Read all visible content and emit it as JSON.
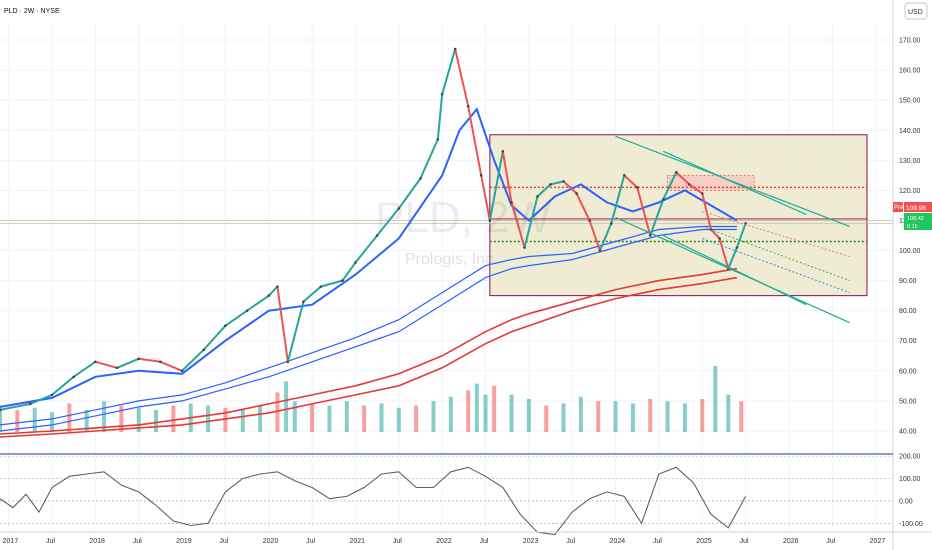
{
  "header": {
    "title": "PLD · 2W · NYSE",
    "currency_button": "USD"
  },
  "watermark": {
    "symbol": "PLD, 2W",
    "name": "Prologis, Inc."
  },
  "price_tags": {
    "last": "109.98",
    "pre_label": "Pre",
    "pre": "109.98",
    "extra_1": "108.42",
    "extra_2": "0.15"
  },
  "colors": {
    "up": "#26a69a",
    "down": "#ef5350",
    "ema_blue": "#2962ff",
    "ema_red": "#e53935",
    "channel": "#22ab94",
    "box_border": "#880e4f",
    "box_fill": "#e9e6c4"
  },
  "chart_data": [
    {
      "type": "line",
      "title": "",
      "y_axis_ticks": [
        "170.00",
        "160.00",
        "150.00",
        "140.00",
        "130.00",
        "120.00",
        "110.00",
        "100.00",
        "90.00",
        "80.00",
        "70.00",
        "60.00",
        "50.00",
        "40.00"
      ],
      "x_axis_ticks": [
        "2017",
        "Jul",
        "2018",
        "Jul",
        "2019",
        "Jul",
        "2020",
        "Jul",
        "2021",
        "Jul",
        "2022",
        "Jul",
        "2023",
        "Jul",
        "2024",
        "Jul",
        "2025",
        "Jul",
        "2026",
        "Jul",
        "2027"
      ],
      "ylim": [
        33,
        176
      ],
      "series": [
        {
          "x": [
            2016.9,
            2017.25,
            2017.5,
            2017.75,
            2018.0,
            2018.25,
            2018.5,
            2018.75,
            2019.0,
            2019.25,
            2019.5,
            2019.75,
            2020.0,
            2020.1,
            2020.22,
            2020.4,
            2020.6,
            2020.85,
            2021.0,
            2021.25,
            2021.5,
            2021.75,
            2021.95,
            2022.0,
            2022.15,
            2022.3,
            2022.45,
            2022.55,
            2022.7,
            2022.8,
            2022.95,
            2023.1,
            2023.25,
            2023.4,
            2023.55,
            2023.7,
            2023.82,
            2023.95,
            2024.1,
            2024.25,
            2024.4,
            2024.55,
            2024.7,
            2024.85,
            2025.0,
            2025.1,
            2025.2,
            2025.3,
            2025.4,
            2025.5
          ],
          "y": [
            47,
            49,
            52,
            58,
            63,
            61,
            64,
            63,
            60,
            67,
            75,
            80,
            85,
            88,
            63,
            83,
            88,
            90,
            96,
            105,
            114,
            124,
            137,
            152,
            167,
            148,
            125,
            110,
            133,
            116,
            101,
            118,
            122,
            123,
            119,
            110,
            100,
            109,
            125,
            121,
            105,
            117,
            126,
            122,
            119,
            107,
            104,
            94,
            101,
            109
          ]
        },
        {
          "x": [
            2016.9,
            2017.5,
            2018.0,
            2018.5,
            2019.0,
            2019.5,
            2020.0,
            2020.5,
            2021.0,
            2021.5,
            2022.0,
            2022.2,
            2022.4,
            2022.6,
            2022.8,
            2023.0,
            2023.3,
            2023.6,
            2023.9,
            2024.2,
            2024.5,
            2024.8,
            2025.1,
            2025.4
          ],
          "y": [
            48,
            51,
            58,
            60,
            59,
            70,
            80,
            82,
            92,
            104,
            125,
            140,
            147,
            130,
            115,
            110,
            118,
            122,
            116,
            113,
            116,
            120,
            115,
            110
          ]
        },
        {
          "x": [
            2016.9,
            2017.5,
            2018.0,
            2018.5,
            2019.0,
            2019.5,
            2020.0,
            2020.5,
            2021.0,
            2021.5,
            2022.0,
            2022.5,
            2022.8,
            2023.0,
            2023.5,
            2024.0,
            2024.5,
            2025.0,
            2025.4
          ],
          "y": [
            42,
            44,
            47,
            50,
            52,
            56,
            61,
            66,
            71,
            77,
            86,
            95,
            97,
            98,
            99,
            103,
            107,
            108,
            108
          ]
        },
        {
          "x": [
            2016.9,
            2017.5,
            2018.0,
            2018.5,
            2019.0,
            2019.5,
            2020.0,
            2020.5,
            2021.0,
            2021.5,
            2022.0,
            2022.5,
            2022.8,
            2023.0,
            2023.5,
            2024.0,
            2024.5,
            2025.0,
            2025.4
          ],
          "y": [
            40,
            42,
            45,
            48,
            50,
            54,
            58,
            63,
            68,
            73,
            82,
            91,
            94,
            95,
            97,
            101,
            105,
            107,
            107
          ]
        },
        {
          "x": [
            2016.9,
            2017.5,
            2018.0,
            2018.5,
            2019.0,
            2019.5,
            2020.0,
            2020.5,
            2021.0,
            2021.5,
            2022.0,
            2022.5,
            2022.8,
            2023.0,
            2023.5,
            2024.0,
            2024.5,
            2025.0,
            2025.4
          ],
          "y": [
            39,
            40,
            41,
            42,
            44,
            46,
            49,
            52,
            55,
            59,
            65,
            73,
            77,
            79,
            83,
            87,
            90,
            92,
            94
          ]
        },
        {
          "x": [
            2016.9,
            2017.5,
            2018.0,
            2018.5,
            2019.0,
            2019.5,
            2020.0,
            2020.5,
            2021.0,
            2021.5,
            2022.0,
            2022.5,
            2022.8,
            2023.0,
            2023.5,
            2024.0,
            2024.5,
            2025.0,
            2025.4
          ],
          "y": [
            38,
            39,
            40,
            41,
            42,
            44,
            46,
            49,
            52,
            55,
            61,
            69,
            73,
            75,
            80,
            84,
            87,
            89,
            91
          ]
        }
      ]
    },
    {
      "type": "bar",
      "title": "",
      "x": [
        2016.9,
        2017.1,
        2017.3,
        2017.5,
        2017.7,
        2017.9,
        2018.1,
        2018.3,
        2018.5,
        2018.7,
        2018.9,
        2019.1,
        2019.3,
        2019.5,
        2019.7,
        2019.9,
        2020.1,
        2020.2,
        2020.3,
        2020.5,
        2020.7,
        2020.9,
        2021.1,
        2021.3,
        2021.5,
        2021.7,
        2021.9,
        2022.1,
        2022.3,
        2022.4,
        2022.5,
        2022.6,
        2022.8,
        2023.0,
        2023.2,
        2023.4,
        2023.6,
        2023.8,
        2024.0,
        2024.2,
        2024.4,
        2024.6,
        2024.8,
        2025.0,
        2025.15,
        2025.3,
        2025.45
      ],
      "values": [
        1.2,
        1.0,
        1.1,
        0.9,
        1.3,
        1.0,
        1.4,
        1.2,
        1.1,
        1.0,
        1.2,
        1.3,
        1.2,
        1.1,
        1.0,
        1.2,
        1.8,
        2.3,
        1.4,
        1.3,
        1.2,
        1.4,
        1.2,
        1.3,
        1.1,
        1.2,
        1.4,
        1.6,
        1.9,
        2.2,
        1.7,
        2.1,
        1.7,
        1.5,
        1.2,
        1.3,
        1.6,
        1.4,
        1.4,
        1.3,
        1.5,
        1.4,
        1.3,
        1.5,
        3.0,
        1.7,
        1.4
      ]
    },
    {
      "type": "line",
      "title": "",
      "y_axis_ticks": [
        "200.00",
        "100.00",
        "0.00",
        "-100.00"
      ],
      "ylim": [
        -130,
        205
      ],
      "x": [
        2016.9,
        2017.05,
        2017.2,
        2017.35,
        2017.5,
        2017.7,
        2017.9,
        2018.1,
        2018.3,
        2018.5,
        2018.7,
        2018.9,
        2019.1,
        2019.3,
        2019.5,
        2019.7,
        2019.9,
        2020.1,
        2020.3,
        2020.5,
        2020.7,
        2020.9,
        2021.1,
        2021.3,
        2021.5,
        2021.7,
        2021.9,
        2022.1,
        2022.3,
        2022.5,
        2022.7,
        2022.9,
        2023.1,
        2023.3,
        2023.5,
        2023.7,
        2023.9,
        2024.1,
        2024.3,
        2024.5,
        2024.7,
        2024.9,
        2025.1,
        2025.3,
        2025.5
      ],
      "y": [
        10,
        -30,
        30,
        -50,
        60,
        110,
        120,
        130,
        70,
        40,
        -20,
        -90,
        -110,
        -100,
        40,
        100,
        120,
        130,
        90,
        60,
        10,
        20,
        60,
        120,
        130,
        60,
        60,
        130,
        150,
        110,
        60,
        -60,
        -140,
        -150,
        -50,
        10,
        40,
        20,
        -100,
        120,
        150,
        80,
        -60,
        -120,
        20
      ]
    }
  ]
}
